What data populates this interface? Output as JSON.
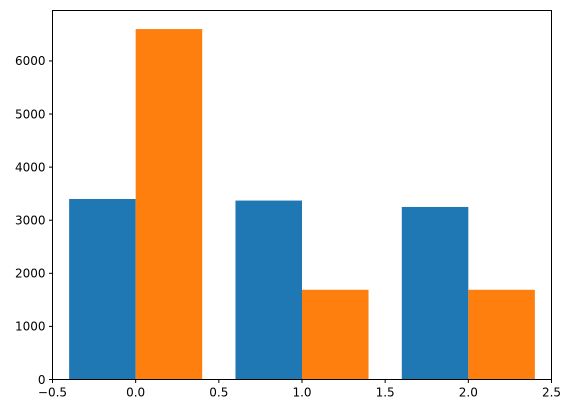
{
  "chart_data": {
    "type": "bar",
    "title": "",
    "xlabel": "",
    "ylabel": "",
    "bar_width": 0.4,
    "series": [
      {
        "x": [
          -0.2,
          0.8,
          1.8
        ],
        "values": [
          3400,
          3370,
          3250
        ],
        "color": "#1f77b4"
      },
      {
        "x": [
          0.2,
          1.2,
          2.2
        ],
        "values": [
          6600,
          1690,
          1690
        ],
        "color": "#ff7f0e"
      }
    ],
    "xlim": [
      -0.5,
      2.5
    ],
    "ylim": [
      0,
      6950
    ],
    "xticks": [
      -0.5,
      0.0,
      0.5,
      1.0,
      1.5,
      2.0,
      2.5
    ],
    "xtick_labels": [
      "−0.5",
      "0.0",
      "0.5",
      "1.0",
      "1.5",
      "2.0",
      "2.5"
    ],
    "yticks": [
      0,
      1000,
      2000,
      3000,
      4000,
      5000,
      6000
    ],
    "ytick_labels": [
      "0",
      "1000",
      "2000",
      "3000",
      "4000",
      "5000",
      "6000"
    ],
    "grid": false,
    "legend": null
  }
}
